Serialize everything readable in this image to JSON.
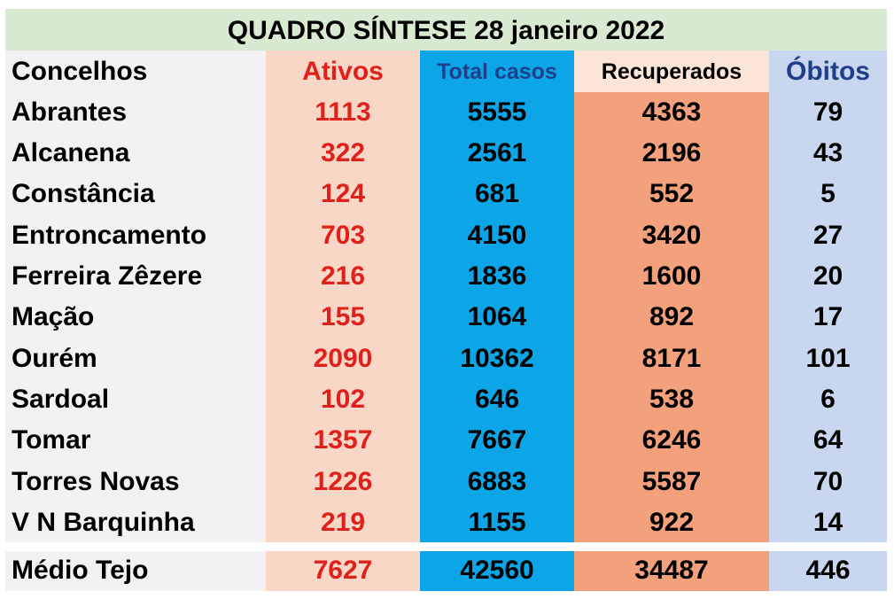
{
  "title": "QUADRO SÍNTESE 28 janeiro 2022",
  "headers": {
    "concelhos": "Concelhos",
    "ativos": "Ativos",
    "total_casos": "Total casos",
    "recuperados": "Recuperados",
    "obitos": "Óbitos"
  },
  "rows": [
    {
      "name": "Abrantes",
      "ativos": "1113",
      "total": "5555",
      "recuperados": "4363",
      "obitos": "79"
    },
    {
      "name": "Alcanena",
      "ativos": "322",
      "total": "2561",
      "recuperados": "2196",
      "obitos": "43"
    },
    {
      "name": "Constância",
      "ativos": "124",
      "total": "681",
      "recuperados": "552",
      "obitos": "5"
    },
    {
      "name": "Entroncamento",
      "ativos": "703",
      "total": "4150",
      "recuperados": "3420",
      "obitos": "27"
    },
    {
      "name": "Ferreira Zêzere",
      "ativos": "216",
      "total": "1836",
      "recuperados": "1600",
      "obitos": "20"
    },
    {
      "name": "Mação",
      "ativos": "155",
      "total": "1064",
      "recuperados": "892",
      "obitos": "17"
    },
    {
      "name": "Ourém",
      "ativos": "2090",
      "total": "10362",
      "recuperados": "8171",
      "obitos": "101"
    },
    {
      "name": "Sardoal",
      "ativos": "102",
      "total": "646",
      "recuperados": "538",
      "obitos": "6"
    },
    {
      "name": "Tomar",
      "ativos": "1357",
      "total": "7667",
      "recuperados": "6246",
      "obitos": "64"
    },
    {
      "name": "Torres Novas",
      "ativos": "1226",
      "total": "6883",
      "recuperados": "5587",
      "obitos": "70"
    },
    {
      "name": "V N Barquinha",
      "ativos": "219",
      "total": "1155",
      "recuperados": "922",
      "obitos": "14"
    }
  ],
  "total_row": {
    "name": "Médio Tejo",
    "ativos": "7627",
    "total": "42560",
    "recuperados": "34487",
    "obitos": "446"
  },
  "colors": {
    "title_bg": "#d9ead3",
    "ativos_bg": "#f9d7c6",
    "ativos_text": "#e0201b",
    "total_bg": "#0ca6e8",
    "recuperados_bg": "#f3a07c",
    "obitos_bg": "#c9d6ef",
    "header_blue_text": "#1f3f8a"
  }
}
